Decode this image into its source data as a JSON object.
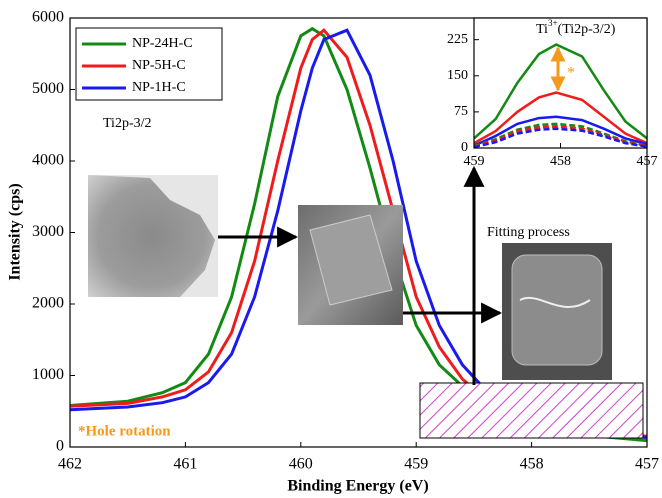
{
  "chart_data": [
    {
      "type": "line",
      "xlabel": "Binding Energy (eV)",
      "ylabel": "Intensity (cps)",
      "x": [
        462,
        461.5,
        461.2,
        461,
        460.8,
        460.6,
        460.4,
        460.2,
        460,
        459.9,
        459.8,
        459.6,
        459.4,
        459.2,
        459,
        458.8,
        458.6,
        458.4,
        458.2,
        458,
        457.5,
        457
      ],
      "series": [
        {
          "name": "NP-24H-C",
          "color": "#138a13",
          "values": [
            580,
            640,
            760,
            900,
            1300,
            2100,
            3400,
            4900,
            5750,
            5850,
            5750,
            5000,
            3900,
            2700,
            1700,
            1150,
            850,
            600,
            420,
            300,
            160,
            90
          ]
        },
        {
          "name": "NP-5H-C",
          "color": "#ee1c1c",
          "values": [
            570,
            610,
            700,
            800,
            1050,
            1600,
            2600,
            4000,
            5300,
            5700,
            5830,
            5450,
            4500,
            3300,
            2100,
            1400,
            950,
            680,
            470,
            340,
            220,
            150
          ]
        },
        {
          "name": "NP-1H-C",
          "color": "#1a1aee",
          "values": [
            520,
            560,
            620,
            700,
            900,
            1300,
            2100,
            3300,
            4700,
            5300,
            5700,
            5830,
            5200,
            4000,
            2600,
            1700,
            1150,
            800,
            540,
            380,
            240,
            130
          ]
        }
      ],
      "xlim": [
        462,
        457
      ],
      "xticks": [
        462,
        461,
        460,
        459,
        458,
        457
      ],
      "ylim": [
        0,
        6000
      ],
      "yticks": [
        0,
        1000,
        2000,
        3000,
        4000,
        5000,
        6000
      ],
      "legend": "upper left",
      "annotations": [
        "Ti2p-3/2",
        "Fitting process",
        "*Hole rotation"
      ]
    },
    {
      "type": "line",
      "title": {
        "base": "Ti",
        "sup": "3+",
        "rest": "(Ti2p-3/2)"
      },
      "marker": "*",
      "x": [
        459,
        458.75,
        458.5,
        458.25,
        458.05,
        457.75,
        457.5,
        457.25,
        457
      ],
      "series": [
        {
          "color": "#138a13",
          "values": [
            20,
            60,
            135,
            195,
            215,
            190,
            120,
            55,
            20
          ]
        },
        {
          "color": "#ee1c1c",
          "values": [
            10,
            35,
            75,
            105,
            115,
            100,
            65,
            30,
            10
          ]
        },
        {
          "color": "#1a1aee",
          "values": [
            5,
            25,
            50,
            62,
            65,
            58,
            40,
            20,
            8
          ]
        },
        {
          "color": "#138a13",
          "dash": true,
          "values": [
            4,
            18,
            38,
            48,
            50,
            45,
            30,
            14,
            5
          ]
        },
        {
          "color": "#ee1c1c",
          "dash": true,
          "values": [
            3,
            15,
            34,
            43,
            45,
            40,
            27,
            12,
            4
          ]
        },
        {
          "color": "#1a1aee",
          "dash": true,
          "values": [
            2,
            12,
            30,
            38,
            40,
            36,
            24,
            10,
            3
          ]
        }
      ],
      "xlim": [
        459,
        457
      ],
      "xticks": [
        459,
        458,
        457
      ],
      "ylim": [
        0,
        270
      ],
      "yticks": [
        0,
        75,
        150,
        225
      ]
    }
  ]
}
